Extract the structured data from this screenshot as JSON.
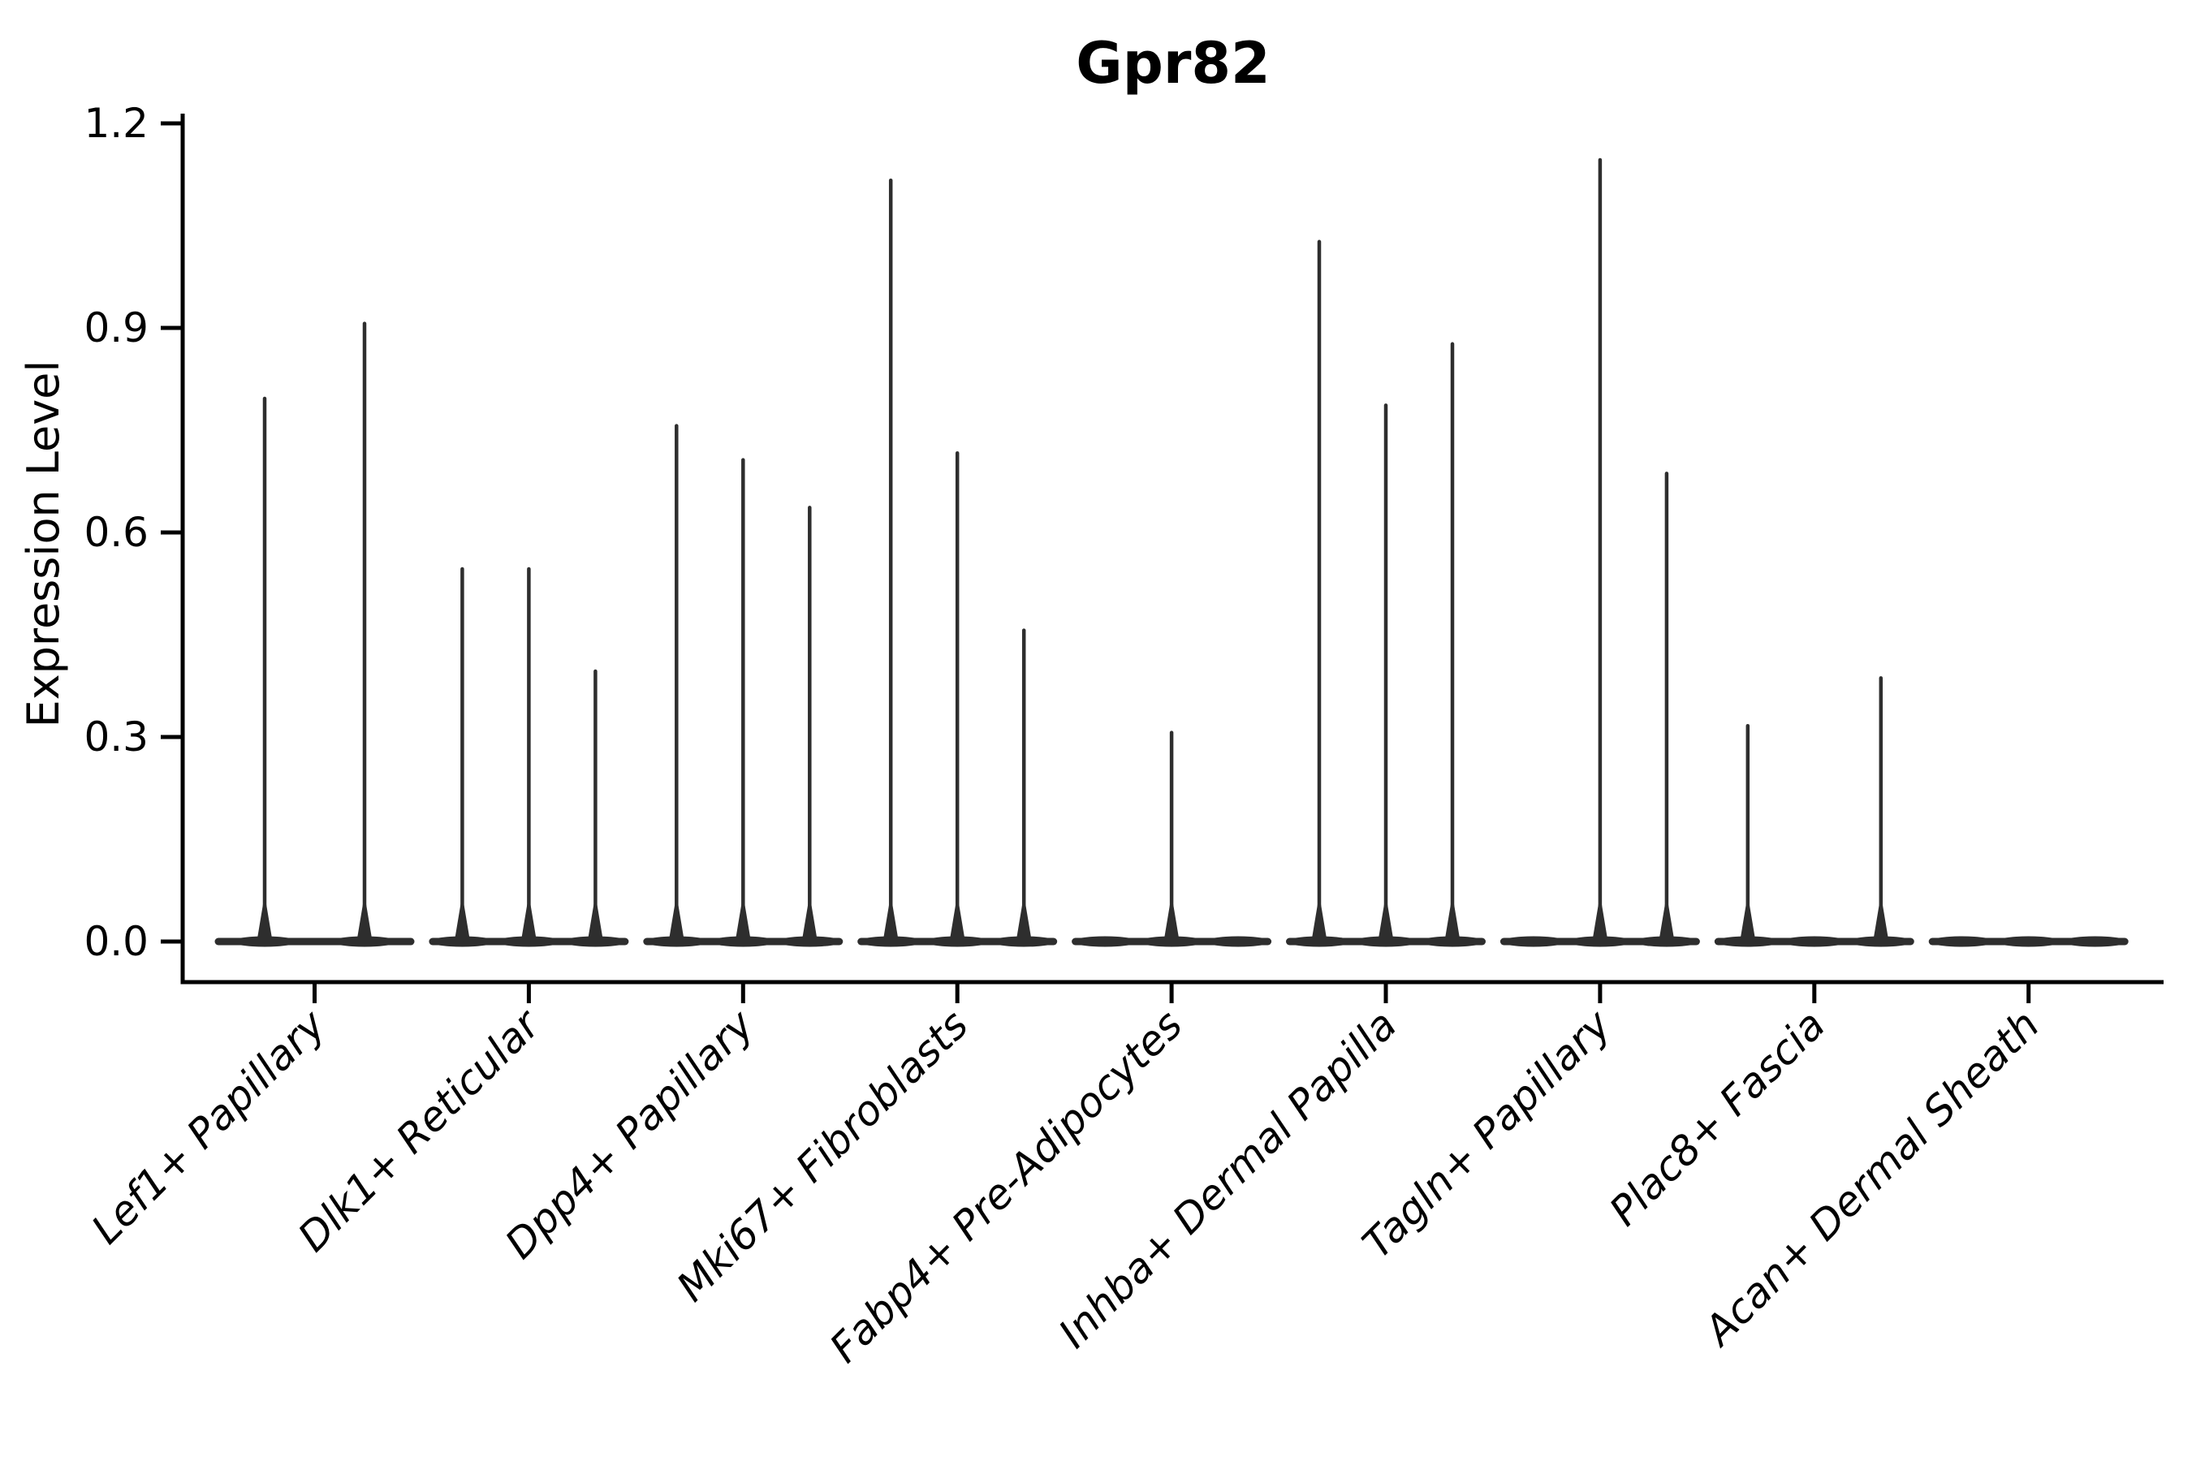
{
  "title": "Gpr82",
  "y_axis": {
    "label": "Expression Level",
    "tick_labels": [
      "0.0",
      "0.3",
      "0.6",
      "0.9",
      "1.2"
    ]
  },
  "chart_data": {
    "type": "violin",
    "title": "Gpr82",
    "xlabel": "",
    "ylabel": "Expression Level",
    "ylim": [
      0,
      1.2
    ],
    "yticks": [
      0,
      0.3,
      0.6,
      0.9,
      1.2
    ],
    "ytick_labels": [
      "0.0",
      "0.3",
      "0.6",
      "0.9",
      "1.2"
    ],
    "grid": false,
    "legend_position": "none",
    "x_tick_rotation": 45,
    "categories": [
      "Lef1+ Papillary",
      "Dlk1+ Reticular",
      "Dpp4+ Papillary",
      "Mki67+ Fibroblasts",
      "Fabp4+ Pre-Adipocytes",
      "Inhba+ Dermal Papilla",
      "Tagln+ Papillary",
      "Plac8+ Fascia",
      "Acan+ Dermal Sheath"
    ],
    "groups": [
      {
        "category": "Lef1+ Papillary",
        "violins": [
          {
            "offset": -0.25,
            "peak": 0.8
          },
          {
            "offset": 0.25,
            "peak": 0.91
          }
        ]
      },
      {
        "category": "Dlk1+ Reticular",
        "violins": [
          {
            "offset": -0.33333,
            "peak": 0.55
          },
          {
            "offset": 0,
            "peak": 0.55
          },
          {
            "offset": 0.33333,
            "peak": 0.4
          }
        ]
      },
      {
        "category": "Dpp4+ Papillary",
        "violins": [
          {
            "offset": -0.33333,
            "peak": 0.76
          },
          {
            "offset": 0,
            "peak": 0.71
          },
          {
            "offset": 0.33333,
            "peak": 0.64
          }
        ]
      },
      {
        "category": "Mki67+ Fibroblasts",
        "violins": [
          {
            "offset": -0.33333,
            "peak": 1.12
          },
          {
            "offset": 0,
            "peak": 0.72
          },
          {
            "offset": 0.33333,
            "peak": 0.46
          }
        ]
      },
      {
        "category": "Fabp4+ Pre-Adipocytes",
        "violins": [
          {
            "offset": -0.33333,
            "peak": 0
          },
          {
            "offset": 0,
            "peak": 0.31
          },
          {
            "offset": 0.33333,
            "peak": 0
          }
        ]
      },
      {
        "category": "Inhba+ Dermal Papilla",
        "violins": [
          {
            "offset": -0.33333,
            "peak": 1.03
          },
          {
            "offset": 0,
            "peak": 0.79
          },
          {
            "offset": 0.33333,
            "peak": 0.88
          }
        ]
      },
      {
        "category": "Tagln+ Papillary",
        "violins": [
          {
            "offset": -0.33333,
            "peak": 0
          },
          {
            "offset": 0,
            "peak": 1.15
          },
          {
            "offset": 0.33333,
            "peak": 0.69
          }
        ]
      },
      {
        "category": "Plac8+ Fascia",
        "violins": [
          {
            "offset": -0.33333,
            "peak": 0.32
          },
          {
            "offset": 0,
            "peak": 0
          },
          {
            "offset": 0.33333,
            "peak": 0.39
          }
        ]
      },
      {
        "category": "Acan+ Dermal Sheath",
        "violins": [
          {
            "offset": -0.33333,
            "peak": 0
          },
          {
            "offset": 0,
            "peak": 0
          },
          {
            "offset": 0.33333,
            "peak": 0
          }
        ]
      }
    ],
    "colors": {
      "ink": "#000000",
      "violin": "#2e2e2e",
      "background": "#ffffff"
    }
  }
}
